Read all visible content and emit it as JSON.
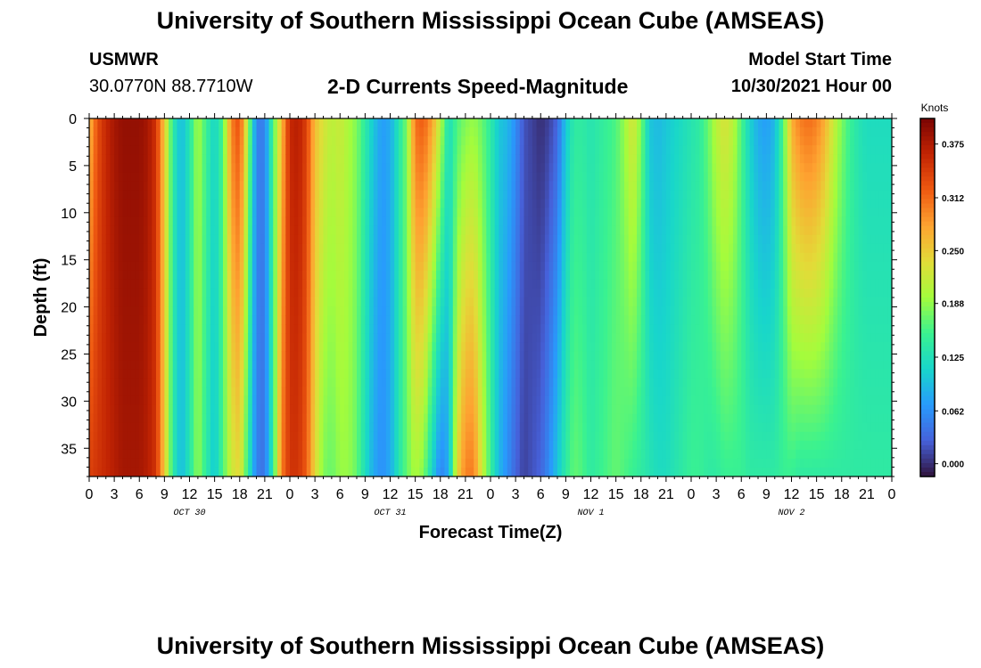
{
  "header": {
    "title": "University of Southern Mississippi Ocean Cube (AMSEAS)",
    "station": "USMWR",
    "coords": "30.0770N  88.7710W",
    "plot_title": "2-D Currents Speed-Magnitude",
    "model_start_label": "Model Start Time",
    "model_start_value": "10/30/2021 Hour 00",
    "footer_title": "University of Southern Mississippi Ocean Cube (AMSEAS)"
  },
  "chart_data": {
    "type": "heatmap",
    "title": "2-D Currents Speed-Magnitude",
    "xlabel": "Forecast Time(Z)",
    "ylabel": "Depth (ft)",
    "colorbar_label": "Knots",
    "x_hours": [
      0,
      96
    ],
    "y_range": [
      0,
      38
    ],
    "y_ticks": [
      0,
      5,
      10,
      15,
      20,
      25,
      30,
      35
    ],
    "x_tick_labels": [
      "0",
      "3",
      "6",
      "9",
      "12",
      "15",
      "18",
      "21",
      "0",
      "3",
      "6",
      "9",
      "12",
      "15",
      "18",
      "21",
      "0",
      "3",
      "6",
      "9",
      "12",
      "15",
      "18",
      "21",
      "0",
      "3",
      "6",
      "9",
      "12",
      "15",
      "18",
      "21",
      "0"
    ],
    "day_labels": [
      {
        "label": "OCT 30",
        "hour": 12
      },
      {
        "label": "OCT 31",
        "hour": 36
      },
      {
        "label": "NOV 1",
        "hour": 60
      },
      {
        "label": "NOV 2",
        "hour": 84
      }
    ],
    "colorbar_ticks": [
      "0.375",
      "0.312",
      "0.250",
      "0.188",
      "0.125",
      "0.062",
      "0.000"
    ],
    "colorbar_range": [
      -0.015,
      0.405
    ],
    "speed_profile_surface": [
      [
        0,
        0.26
      ],
      [
        1,
        0.33
      ],
      [
        2,
        0.36
      ],
      [
        3,
        0.38
      ],
      [
        4,
        0.39
      ],
      [
        5,
        0.39
      ],
      [
        6,
        0.39
      ],
      [
        7,
        0.38
      ],
      [
        8,
        0.35
      ],
      [
        9,
        0.25
      ],
      [
        10,
        0.14
      ],
      [
        11,
        0.09
      ],
      [
        12,
        0.13
      ],
      [
        13,
        0.2
      ],
      [
        14,
        0.15
      ],
      [
        15,
        0.11
      ],
      [
        16,
        0.16
      ],
      [
        17,
        0.3
      ],
      [
        18,
        0.33
      ],
      [
        19,
        0.2
      ],
      [
        20,
        0.05
      ],
      [
        21,
        0.05
      ],
      [
        22,
        0.16
      ],
      [
        23,
        0.26
      ],
      [
        24,
        0.36
      ],
      [
        25,
        0.37
      ],
      [
        26,
        0.34
      ],
      [
        27,
        0.26
      ],
      [
        28,
        0.23
      ],
      [
        29,
        0.21
      ],
      [
        30,
        0.22
      ],
      [
        31,
        0.2
      ],
      [
        32,
        0.18
      ],
      [
        33,
        0.14
      ],
      [
        34,
        0.1
      ],
      [
        35,
        0.07
      ],
      [
        36,
        0.08
      ],
      [
        37,
        0.13
      ],
      [
        38,
        0.18
      ],
      [
        39,
        0.31
      ],
      [
        40,
        0.32
      ],
      [
        41,
        0.28
      ],
      [
        42,
        0.21
      ],
      [
        43,
        0.12
      ],
      [
        44,
        0.16
      ],
      [
        45,
        0.18
      ],
      [
        46,
        0.19
      ],
      [
        47,
        0.17
      ],
      [
        48,
        0.14
      ],
      [
        49,
        0.1
      ],
      [
        50,
        0.09
      ],
      [
        51,
        0.06
      ],
      [
        52,
        0.02
      ],
      [
        53,
        0.01
      ],
      [
        54,
        0.0
      ],
      [
        55,
        0.01
      ],
      [
        56,
        0.03
      ],
      [
        57,
        0.1
      ],
      [
        58,
        0.14
      ],
      [
        59,
        0.14
      ],
      [
        60,
        0.13
      ],
      [
        61,
        0.14
      ],
      [
        62,
        0.15
      ],
      [
        63,
        0.16
      ],
      [
        64,
        0.19
      ],
      [
        65,
        0.23
      ],
      [
        66,
        0.18
      ],
      [
        67,
        0.1
      ],
      [
        68,
        0.09
      ],
      [
        69,
        0.1
      ],
      [
        70,
        0.11
      ],
      [
        71,
        0.12
      ],
      [
        72,
        0.13
      ],
      [
        73,
        0.14
      ],
      [
        74,
        0.17
      ],
      [
        75,
        0.21
      ],
      [
        76,
        0.23
      ],
      [
        77,
        0.21
      ],
      [
        78,
        0.16
      ],
      [
        79,
        0.11
      ],
      [
        80,
        0.08
      ],
      [
        81,
        0.07
      ],
      [
        82,
        0.09
      ],
      [
        83,
        0.16
      ],
      [
        84,
        0.27
      ],
      [
        85,
        0.3
      ],
      [
        86,
        0.31
      ],
      [
        87,
        0.3
      ],
      [
        88,
        0.27
      ],
      [
        89,
        0.22
      ],
      [
        90,
        0.18
      ],
      [
        91,
        0.15
      ],
      [
        92,
        0.13
      ],
      [
        93,
        0.12
      ],
      [
        94,
        0.12
      ],
      [
        95,
        0.12
      ],
      [
        96,
        0.12
      ]
    ],
    "speed_profile_bottom": [
      [
        0,
        0.34
      ],
      [
        1,
        0.35
      ],
      [
        2,
        0.36
      ],
      [
        3,
        0.37
      ],
      [
        4,
        0.38
      ],
      [
        5,
        0.38
      ],
      [
        6,
        0.38
      ],
      [
        7,
        0.37
      ],
      [
        8,
        0.35
      ],
      [
        9,
        0.25
      ],
      [
        10,
        0.14
      ],
      [
        11,
        0.09
      ],
      [
        12,
        0.13
      ],
      [
        13,
        0.19
      ],
      [
        14,
        0.14
      ],
      [
        15,
        0.1
      ],
      [
        16,
        0.16
      ],
      [
        17,
        0.22
      ],
      [
        18,
        0.24
      ],
      [
        19,
        0.14
      ],
      [
        20,
        0.05
      ],
      [
        21,
        0.04
      ],
      [
        22,
        0.14
      ],
      [
        23,
        0.3
      ],
      [
        24,
        0.35
      ],
      [
        25,
        0.35
      ],
      [
        26,
        0.32
      ],
      [
        27,
        0.24
      ],
      [
        28,
        0.18
      ],
      [
        29,
        0.17
      ],
      [
        30,
        0.19
      ],
      [
        31,
        0.19
      ],
      [
        32,
        0.17
      ],
      [
        33,
        0.12
      ],
      [
        34,
        0.08
      ],
      [
        35,
        0.06
      ],
      [
        36,
        0.08
      ],
      [
        37,
        0.13
      ],
      [
        38,
        0.17
      ],
      [
        39,
        0.2
      ],
      [
        40,
        0.18
      ],
      [
        41,
        0.11
      ],
      [
        42,
        0.05
      ],
      [
        43,
        0.08
      ],
      [
        44,
        0.24
      ],
      [
        45,
        0.3
      ],
      [
        46,
        0.3
      ],
      [
        47,
        0.22
      ],
      [
        48,
        0.15
      ],
      [
        49,
        0.09
      ],
      [
        50,
        0.06
      ],
      [
        51,
        0.03
      ],
      [
        52,
        0.01
      ],
      [
        53,
        0.02
      ],
      [
        54,
        0.03
      ],
      [
        55,
        0.06
      ],
      [
        56,
        0.1
      ],
      [
        57,
        0.14
      ],
      [
        58,
        0.17
      ],
      [
        59,
        0.16
      ],
      [
        60,
        0.14
      ],
      [
        61,
        0.15
      ],
      [
        62,
        0.16
      ],
      [
        63,
        0.17
      ],
      [
        64,
        0.16
      ],
      [
        65,
        0.15
      ],
      [
        66,
        0.14
      ],
      [
        67,
        0.13
      ],
      [
        68,
        0.12
      ],
      [
        69,
        0.12
      ],
      [
        70,
        0.13
      ],
      [
        71,
        0.14
      ],
      [
        72,
        0.15
      ],
      [
        73,
        0.15
      ],
      [
        74,
        0.14
      ],
      [
        75,
        0.14
      ],
      [
        76,
        0.15
      ],
      [
        77,
        0.15
      ],
      [
        78,
        0.15
      ],
      [
        79,
        0.14
      ],
      [
        80,
        0.14
      ],
      [
        81,
        0.14
      ],
      [
        82,
        0.14
      ],
      [
        83,
        0.15
      ],
      [
        84,
        0.15
      ],
      [
        85,
        0.14
      ],
      [
        86,
        0.14
      ],
      [
        87,
        0.14
      ],
      [
        88,
        0.14
      ],
      [
        89,
        0.14
      ],
      [
        90,
        0.14
      ],
      [
        91,
        0.14
      ],
      [
        92,
        0.14
      ],
      [
        93,
        0.14
      ],
      [
        94,
        0.14
      ],
      [
        95,
        0.14
      ],
      [
        96,
        0.14
      ]
    ]
  }
}
